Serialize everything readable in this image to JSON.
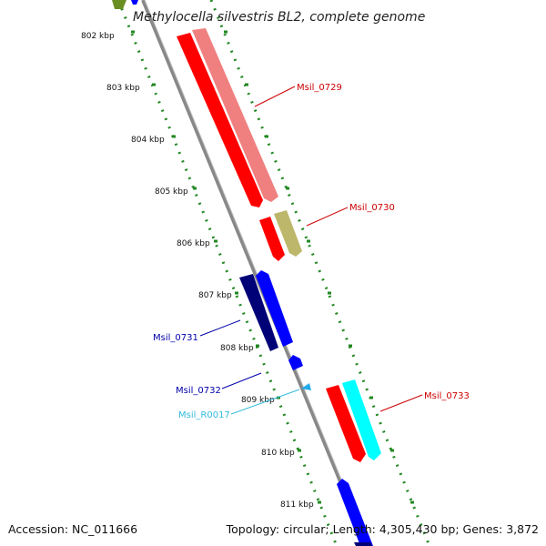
{
  "title": "Methylocella silvestris BL2, complete genome",
  "ruler": {
    "ticks": [
      "802 kbp",
      "803 kbp",
      "804 kbp",
      "805 kbp",
      "806 kbp",
      "807 kbp",
      "808 kbp",
      "809 kbp",
      "810 kbp",
      "811 kbp"
    ]
  },
  "genes": [
    {
      "label": "Msil_0729",
      "color": "#cc0000"
    },
    {
      "label": "Msil_0730",
      "color": "#cc0000"
    },
    {
      "label": "Msil_0731",
      "color": "#0000aa"
    },
    {
      "label": "Msil_0732",
      "color": "#0000aa"
    },
    {
      "label": "Msil_R0017",
      "color": "#33bbdd"
    },
    {
      "label": "Msil_0733",
      "color": "#cc0000"
    }
  ],
  "colors": {
    "backbone": "#888888",
    "ruler_dots": "#228822",
    "cds_forward": "#ff0000",
    "cds_forward_light": "#f08080",
    "cds_reverse": "#0000ff",
    "cds_reverse_dark": "#000077",
    "cog_olive": "#bdb76b",
    "trna": "#22aaee",
    "cog_cyan": "#00ffff",
    "cog_green": "#6b8e23"
  },
  "footer": {
    "accession": "Accession: NC_011666",
    "summary": "Topology: circular; Length: 4,305,430 bp; Genes: 3,872"
  }
}
